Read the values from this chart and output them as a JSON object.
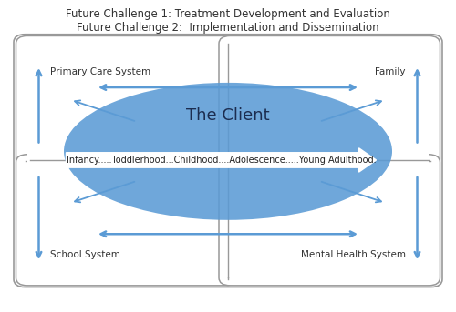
{
  "title_line1": "Future Challenge 1: Treatment Development and Evaluation",
  "title_line2": "Future Challenge 2:  Implementation and Dissemination",
  "title_fontsize": 8.5,
  "label_primary_care": "Primary Care System",
  "label_family": "Family",
  "label_school": "School System",
  "label_mental_health": "Mental Health System",
  "label_client": "The Client",
  "label_timeline": "Infancy.....Toddlerhood...Childhood....Adolescence.....Young Adulthood.",
  "blue_color": "#5B9BD5",
  "box_edge_color": "#999999",
  "bg_color": "#ffffff",
  "label_fontsize": 7.5,
  "client_fontsize": 13,
  "timeline_fontsize": 7.0
}
